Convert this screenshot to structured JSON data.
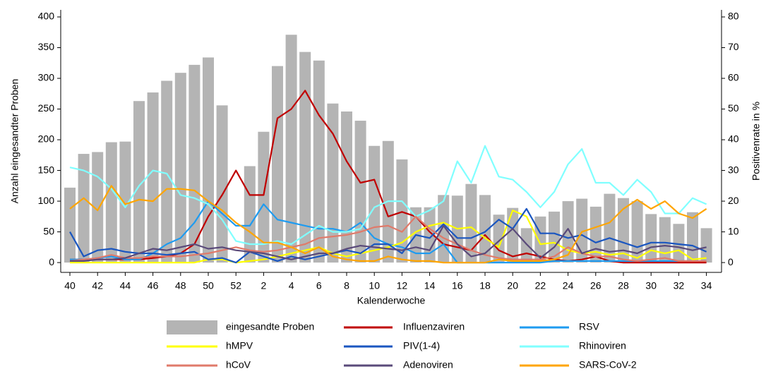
{
  "chart_data": {
    "type": "bar",
    "categories": [
      "40",
      null,
      "42",
      null,
      "44",
      null,
      "46",
      null,
      "48",
      null,
      "50",
      null,
      "52",
      null,
      "2",
      null,
      "4",
      null,
      "6",
      null,
      "8",
      null,
      "10",
      null,
      "12",
      null,
      "14",
      null,
      "16",
      null,
      "18",
      null,
      "20",
      null,
      "22",
      null,
      "24",
      null,
      "26",
      null,
      "28",
      null,
      "30",
      null,
      "32",
      null,
      "34"
    ],
    "x_label": "Kalenderwoche",
    "y_label": "Anzahl eingesandter Proben",
    "y2_label": "Positivenrate in %",
    "ylim": [
      -16,
      411.5
    ],
    "yticks": [
      0,
      50,
      100,
      150,
      200,
      250,
      300,
      350,
      400
    ],
    "y2lim": [
      -3.2,
      82.3
    ],
    "y2ticks": [
      0,
      10,
      20,
      30,
      40,
      50,
      60,
      70,
      80
    ],
    "series": [
      {
        "name": "eingesandte Proben",
        "type": "bar",
        "axis": "y",
        "color": "#b4b4b4",
        "values": [
          122,
          177,
          180,
          196,
          197,
          263,
          277,
          296,
          309,
          322,
          334,
          256,
          0,
          157,
          213,
          320,
          371,
          343,
          329,
          259,
          246,
          231,
          190,
          198,
          168,
          90,
          90,
          110,
          109,
          128,
          110,
          78,
          89,
          56,
          75,
          83,
          100,
          104,
          91,
          112,
          105,
          100,
          79,
          74,
          63,
          82,
          56
        ]
      },
      {
        "name": "Influenzaviren",
        "type": "line",
        "axis": "y2",
        "color": "#c00000",
        "values": [
          1,
          1,
          1,
          1,
          1,
          1,
          1.5,
          2,
          3,
          6,
          15,
          22,
          30,
          22,
          22,
          47,
          50,
          56,
          48,
          42,
          33,
          26,
          27,
          15,
          16.5,
          15,
          10,
          6,
          5,
          4,
          9,
          4,
          2,
          3,
          2,
          1,
          0.5,
          1,
          2,
          0.5,
          0,
          0,
          0,
          0,
          0,
          0,
          0
        ]
      },
      {
        "name": "RSV",
        "type": "line",
        "axis": "y2",
        "color": "#1e9bf0",
        "values": [
          1,
          1,
          1.5,
          2,
          1,
          1,
          3,
          6,
          8,
          13,
          20,
          16,
          12,
          12,
          19,
          14,
          13,
          12,
          11,
          11,
          10,
          13,
          8,
          6,
          5,
          3,
          3,
          6,
          0,
          0,
          0,
          0,
          0,
          0,
          0,
          0.5,
          0.5,
          0.5,
          0.5,
          0.5,
          0.5,
          0.5,
          0.5,
          0.5,
          0.5,
          0.5,
          0.5
        ]
      },
      {
        "name": "hMPV",
        "type": "line",
        "axis": "y2",
        "color": "#ffff00",
        "values": [
          0,
          0,
          0,
          0,
          0,
          0,
          0,
          0,
          0,
          0,
          1,
          1,
          0,
          0.5,
          1,
          2,
          3,
          4,
          5,
          3,
          2,
          3,
          4,
          5,
          6.5,
          10,
          12,
          13,
          11,
          11.5,
          8,
          5,
          17,
          15,
          6,
          6.5,
          4,
          3,
          3.5,
          2.5,
          3,
          1.5,
          4,
          3,
          4,
          1,
          1.5
        ]
      },
      {
        "name": "PIV(1-4)",
        "type": "line",
        "axis": "y2",
        "color": "#1a56c0",
        "values": [
          10,
          2,
          4,
          4.5,
          3.5,
          3,
          3,
          2.5,
          3,
          3.5,
          1,
          1.5,
          0,
          3.5,
          2,
          0.5,
          2,
          1,
          2,
          3,
          4,
          3,
          6,
          6,
          3,
          9,
          8,
          12.5,
          8,
          8,
          10,
          14,
          11,
          17.5,
          9.5,
          9.5,
          8,
          9,
          6.5,
          8,
          6.5,
          5,
          6.5,
          6.5,
          6,
          5.5,
          3.5
        ]
      },
      {
        "name": "Rhinoviren",
        "type": "line",
        "axis": "y2",
        "color": "#80ffff",
        "values": [
          31,
          30,
          28,
          24,
          18,
          25,
          30,
          29,
          22,
          21,
          19,
          14,
          7,
          6,
          6,
          7,
          6,
          9,
          12,
          10,
          10,
          11,
          18,
          20,
          20,
          15,
          17,
          20,
          33,
          26,
          38,
          28,
          27,
          23,
          18,
          23,
          32,
          37,
          26,
          26,
          22,
          27,
          23,
          16,
          16,
          21,
          19
        ]
      },
      {
        "name": "hCoV",
        "type": "line",
        "axis": "y2",
        "color": "#e07a6a",
        "values": [
          0.5,
          1,
          1.5,
          2.5,
          1.5,
          1.5,
          2,
          2,
          2,
          2.5,
          3,
          4,
          5,
          4,
          3.5,
          4,
          5,
          6,
          8,
          8.5,
          9,
          10,
          11.5,
          12,
          10,
          15,
          11,
          8,
          6,
          4,
          2.5,
          1.5,
          1,
          1,
          1,
          2,
          5,
          3,
          2,
          2,
          1,
          0.5,
          1,
          1.5,
          0.5,
          0.5,
          0.5
        ]
      },
      {
        "name": "Adenoviren",
        "type": "line",
        "axis": "y2",
        "color": "#5a4a7a",
        "values": [
          0.5,
          0.5,
          1,
          1,
          1.5,
          3,
          4.5,
          4,
          5,
          6,
          4.5,
          5,
          4,
          3.5,
          3,
          2,
          1,
          2,
          3,
          3,
          4.5,
          5.5,
          5,
          4.5,
          4,
          5,
          4,
          12,
          6,
          2,
          3,
          7,
          11,
          6,
          1.5,
          5,
          11,
          3,
          4.5,
          3.5,
          4,
          3,
          5,
          5.5,
          5,
          4,
          5
        ]
      },
      {
        "name": "SARS-CoV-2",
        "type": "line",
        "axis": "y2",
        "color": "#ffa500",
        "values": [
          17.5,
          21,
          17,
          25,
          19,
          20.5,
          20,
          24,
          24,
          23.5,
          20,
          17,
          13,
          10,
          6.5,
          6.5,
          5,
          3,
          5,
          2,
          1,
          0.5,
          0.5,
          2,
          1,
          0.5,
          0.5,
          0,
          0,
          0,
          0,
          1,
          0.5,
          0.5,
          0.5,
          1,
          2.5,
          10,
          11.5,
          13,
          17.5,
          20.5,
          17.5,
          20,
          16,
          14.5,
          17.5
        ]
      }
    ]
  }
}
